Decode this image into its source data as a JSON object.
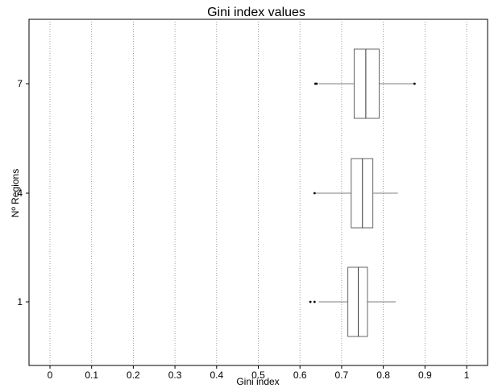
{
  "chart_data": {
    "type": "boxplot",
    "orientation": "horizontal",
    "title": "Gini index values",
    "xlabel": "Gini index",
    "ylabel": "Nº Regions",
    "xlim": [
      -0.05,
      1.05
    ],
    "x_ticks": [
      "0",
      "0.1",
      "0.2",
      "0.3",
      "0.4",
      "0.5",
      "0.6",
      "0.7",
      "0.8",
      "0.9",
      "1"
    ],
    "grid": "vertical-dotted",
    "categories": [
      "1",
      "4",
      "7"
    ],
    "boxes": [
      {
        "category": "1",
        "whisker_low": 0.645,
        "q1": 0.715,
        "median": 0.74,
        "q3": 0.762,
        "whisker_high": 0.83,
        "outliers": [
          0.625,
          0.635
        ]
      },
      {
        "category": "4",
        "whisker_low": 0.635,
        "q1": 0.723,
        "median": 0.75,
        "q3": 0.775,
        "whisker_high": 0.835,
        "outliers": [
          0.635
        ]
      },
      {
        "category": "7",
        "whisker_low": 0.645,
        "q1": 0.73,
        "median": 0.758,
        "q3": 0.79,
        "whisker_high": 0.875,
        "outliers": [
          0.637,
          0.64,
          0.875
        ]
      }
    ],
    "colors": {
      "box_stroke": "#555555",
      "grid": "#888888",
      "axis": "#000000"
    }
  }
}
